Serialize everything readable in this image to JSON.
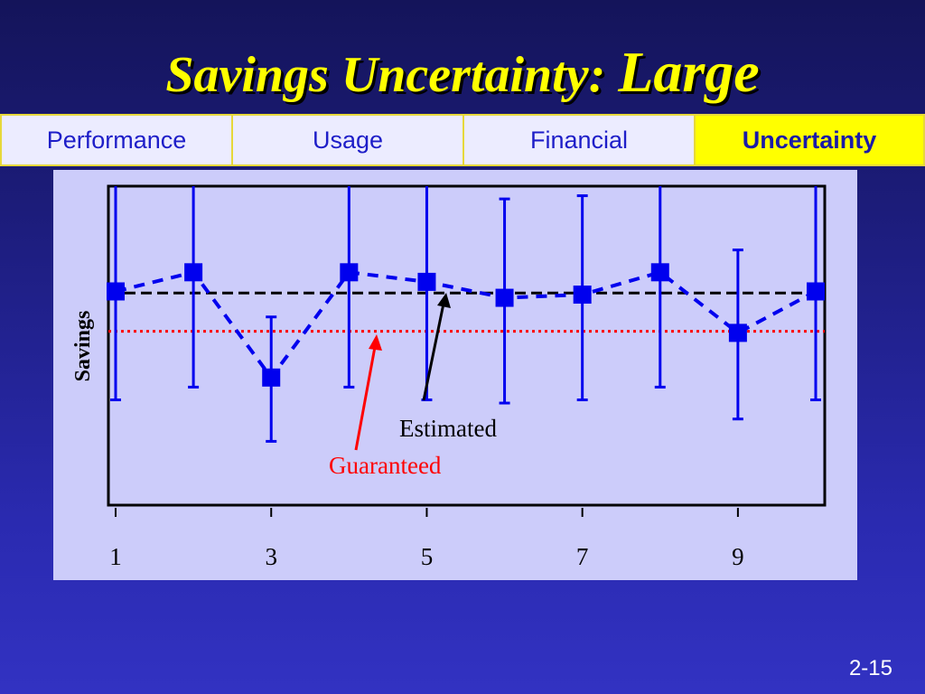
{
  "slide": {
    "title_main": "Savings Uncertainty:",
    "title_emph": "Large",
    "page_number": "2-15"
  },
  "tabs": [
    {
      "label": "Performance",
      "active": false
    },
    {
      "label": "Usage",
      "active": false
    },
    {
      "label": "Financial",
      "active": false
    },
    {
      "label": "Uncertainty",
      "active": true
    }
  ],
  "colors": {
    "title": "#ffff00",
    "tab_text": "#1e1ec8",
    "tab_active_bg": "#ffff00",
    "series": "#0000ee",
    "guaranteed": "#ff0000",
    "estimated": "#000000",
    "panel_bg": "#ccccfa"
  },
  "chart_data": {
    "type": "scatter",
    "ylabel": "Savings",
    "xlabel": "",
    "x_ticks": [
      "1",
      "3",
      "5",
      "7",
      "9"
    ],
    "xlim": [
      1,
      10
    ],
    "ylim": [
      0,
      100
    ],
    "grid": false,
    "series": [
      {
        "x": [
          1,
          2,
          3,
          4,
          5,
          6,
          7,
          8,
          9,
          10
        ],
        "y": [
          67,
          73,
          40,
          73,
          70,
          65,
          66,
          73,
          54,
          67
        ],
        "y_low": [
          33,
          37,
          20,
          37,
          33,
          32,
          33,
          37,
          27,
          33
        ],
        "y_high": [
          100,
          100,
          59,
          100,
          100,
          96,
          97,
          100,
          80,
          100
        ]
      }
    ],
    "reference_lines": [
      {
        "label": "Estimated",
        "y": 66.5,
        "style": "dashed"
      },
      {
        "label": "Guaranteed",
        "y": 54.5,
        "style": "dotted"
      }
    ],
    "annotations": [
      "Estimated",
      "Guaranteed"
    ]
  }
}
